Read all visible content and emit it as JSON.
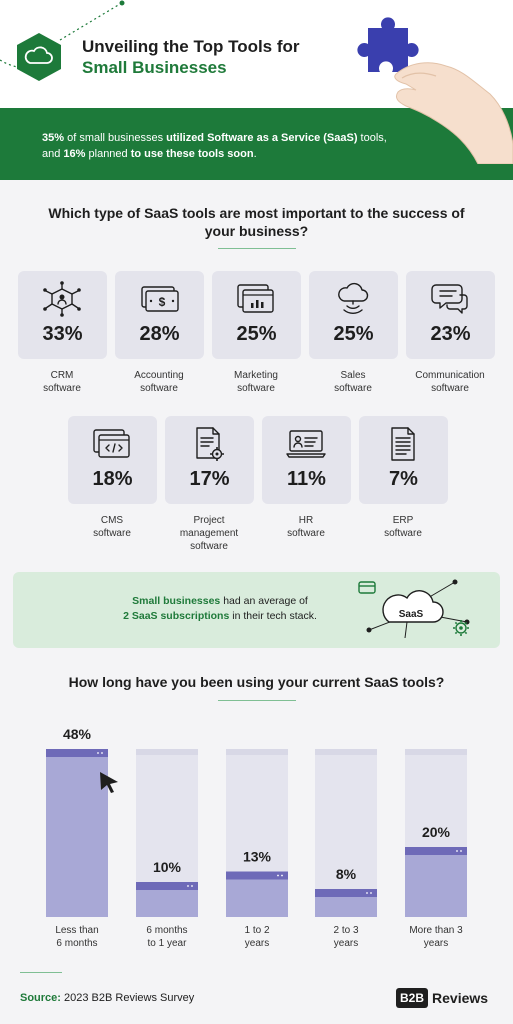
{
  "header": {
    "title_line1": "Unveiling the Top Tools for",
    "title_line2": "Small Businesses"
  },
  "banner": {
    "stat1": "35%",
    "text1": " of small businesses ",
    "text2": "utilized Software as a Service (SaaS)",
    "text3": " tools, and ",
    "stat2": "16%",
    "text4": " planned ",
    "text5": "to use these tools soon",
    "text6": "."
  },
  "question1": {
    "title": "Which type of SaaS tools are most important to the success of your business?"
  },
  "chart_data": [
    {
      "type": "table",
      "title": "Which type of SaaS tools are most important to the success of your business?",
      "items": [
        {
          "rank": "1",
          "value": "33%",
          "label_line1": "CRM",
          "label_line2": "software",
          "label_line3": "",
          "icon": "crm-network-icon"
        },
        {
          "rank": "2",
          "value": "28%",
          "label_line1": "Accounting",
          "label_line2": "software",
          "label_line3": "",
          "icon": "dollar-bill-icon"
        },
        {
          "rank": "3",
          "value": "25%",
          "label_line1": "Marketing",
          "label_line2": "software",
          "label_line3": "",
          "icon": "chart-screen-icon"
        },
        {
          "rank": "4",
          "value": "25%",
          "label_line1": "Sales",
          "label_line2": "software",
          "label_line3": "",
          "icon": "cloud-signal-icon"
        },
        {
          "rank": "5",
          "value": "23%",
          "label_line1": "Communication",
          "label_line2": "software",
          "label_line3": "",
          "icon": "chat-bubbles-icon"
        },
        {
          "rank": "6",
          "value": "18%",
          "label_line1": "CMS",
          "label_line2": "software",
          "label_line3": "",
          "icon": "code-window-icon"
        },
        {
          "rank": "7",
          "value": "17%",
          "label_line1": "Project",
          "label_line2": "management",
          "label_line3": "software",
          "icon": "document-gear-icon"
        },
        {
          "rank": "8",
          "value": "11%",
          "label_line1": "HR",
          "label_line2": "software",
          "label_line3": "",
          "icon": "id-laptop-icon"
        },
        {
          "rank": "9",
          "value": "7%",
          "label_line1": "ERP",
          "label_line2": "software",
          "label_line3": "",
          "icon": "document-list-icon"
        }
      ]
    },
    {
      "type": "bar",
      "title": "How long have you been using your current SaaS tools?",
      "categories": [
        "Less than 6 months",
        "6 months to 1 year",
        "1 to 2 years",
        "2 to 3 years",
        "More than 3 years"
      ],
      "category_lines": [
        [
          "Less than",
          "6 months"
        ],
        [
          "6 months",
          "to 1 year"
        ],
        [
          "1 to 2",
          "years"
        ],
        [
          "2 to 3",
          "years"
        ],
        [
          "More than 3",
          "years"
        ]
      ],
      "values": [
        48,
        10,
        13,
        8,
        20
      ],
      "value_labels": [
        "48%",
        "10%",
        "13%",
        "8%",
        "20%"
      ],
      "ylim": [
        0,
        48
      ],
      "colors": {
        "fill": "#a8a8d6",
        "track": "#e4e4ee",
        "cap": "#6e6ab8"
      }
    }
  ],
  "info_box": {
    "bold1": "Small businesses",
    "text1": " had an average of",
    "bold2": "2 SaaS subscriptions",
    "text2": " in their tech stack.",
    "cloud_label": "SaaS"
  },
  "question2": {
    "title": "How long have you been using your current SaaS tools?"
  },
  "footer": {
    "source_label": "Source:",
    "source_text": " 2023 B2B Reviews Survey",
    "brand_b2b": "B2B",
    "brand_reviews": "Reviews"
  },
  "colors": {
    "green": "#1d7a3a",
    "card": "#e4e4ec",
    "bar_fill": "#a8a8d6",
    "bar_cap": "#6e6ab8"
  }
}
